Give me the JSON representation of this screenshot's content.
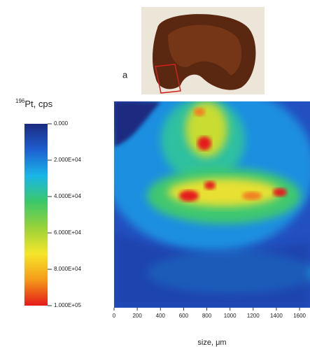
{
  "chart_data": {
    "type": "heatmap",
    "panel_label": "a",
    "colorbar_title_mass": "196",
    "colorbar_title": "Pt, cps",
    "colorbar_lim": [
      0,
      100000
    ],
    "colorbar_ticks": [
      {
        "value": 0,
        "label": "0.000"
      },
      {
        "value": 20000,
        "label": "2.000E+04"
      },
      {
        "value": 40000,
        "label": "4.000E+04"
      },
      {
        "value": 60000,
        "label": "6.000E+04"
      },
      {
        "value": 80000,
        "label": "8.000E+04"
      },
      {
        "value": 100000,
        "label": "1.000E+05"
      }
    ],
    "colormap": [
      "#1b2a80",
      "#1f5fd0",
      "#19b6e8",
      "#3cc86a",
      "#9ad23a",
      "#f5e62a",
      "#f59a1a",
      "#e41a1a"
    ],
    "x_label": "size, μm",
    "xlim": [
      0,
      1690
    ],
    "xticks": [
      0,
      200,
      400,
      600,
      800,
      1000,
      1200,
      1400,
      1600
    ]
  }
}
